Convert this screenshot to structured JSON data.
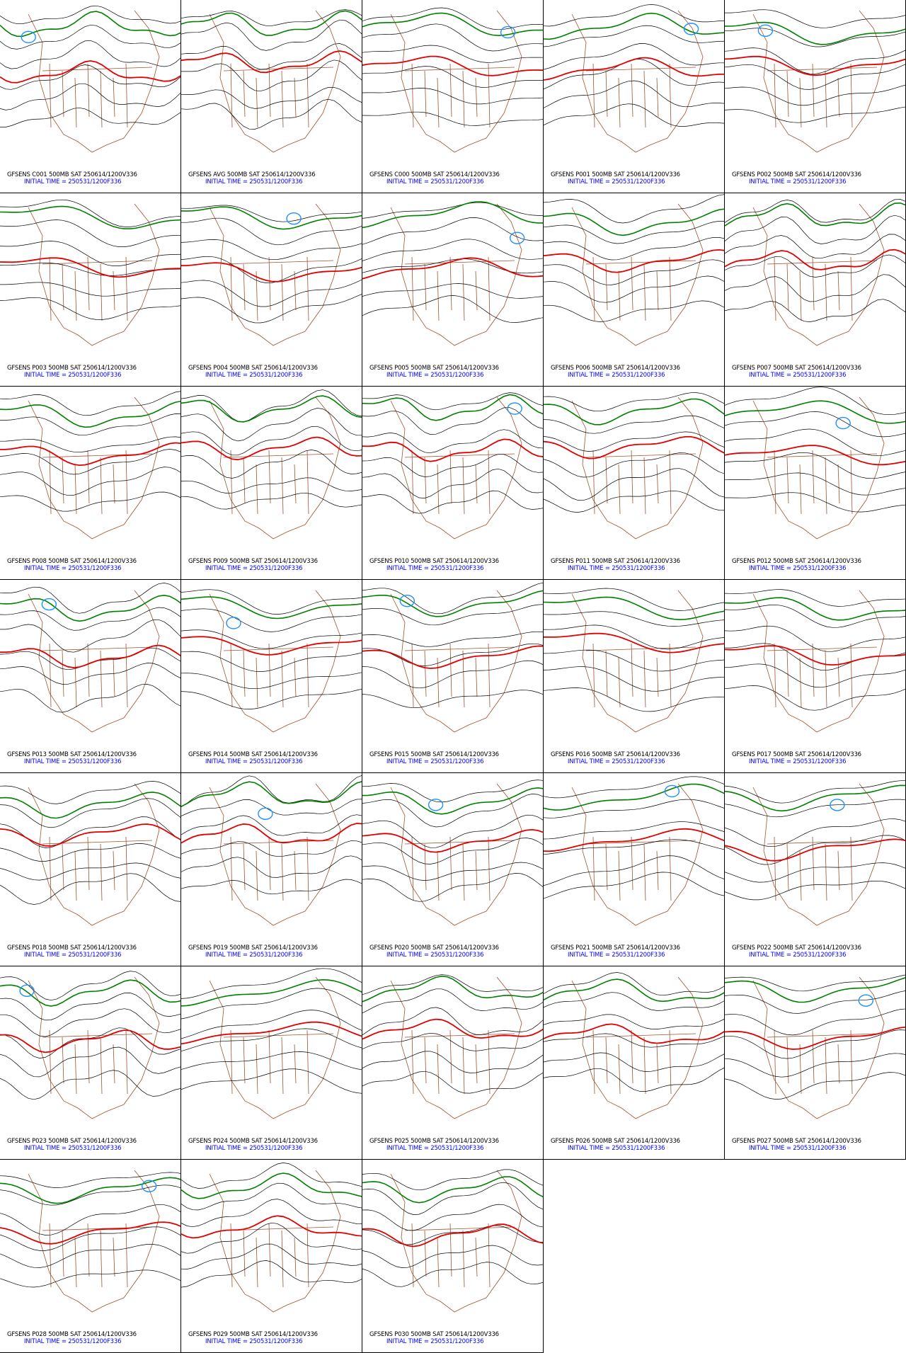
{
  "panels": [
    {
      "line1": "GFSENS C001 500MB SAT 250614/1200V336",
      "line2": "INITIAL TIME = 250531/1200F336"
    },
    {
      "line1": "GFSENS AVG 500MB SAT 250614/1200V336",
      "line2": "INITIAL TIME = 250531/1200F336"
    },
    {
      "line1": "GFSENS C000 500MB SAT 250614/1200V336",
      "line2": "INITIAL TIME = 250531/1200F336"
    },
    {
      "line1": "GFSENS P001 500MB SAT 250614/1200V336",
      "line2": "INITIAL TIME = 250531/1200F336"
    },
    {
      "line1": "GFSENS P002 500MB SAT 250614/1200V336",
      "line2": "INITIAL TIME = 250531/1200F336"
    },
    {
      "line1": "GFSENS P003 500MB SAT 250614/1200V336",
      "line2": "INITIAL TIME = 250531/1200F336"
    },
    {
      "line1": "GFSENS P004 500MB SAT 250614/1200V336",
      "line2": "INITIAL TIME = 250531/1200F336"
    },
    {
      "line1": "GFSENS P005 500MB SAT 250614/1200V336",
      "line2": "INITIAL TIME = 250531/1200F336"
    },
    {
      "line1": "GFSENS P006 500MB SAT 250614/1200V336",
      "line2": "INITIAL TIME = 250531/1200F336"
    },
    {
      "line1": "GFSENS P007 500MB SAT 250614/1200V336",
      "line2": "INITIAL TIME = 250531/1200F336"
    },
    {
      "line1": "GFSENS P008 500MB SAT 250614/1200V336",
      "line2": "INITIAL TIME = 250531/1200F336"
    },
    {
      "line1": "GFSENS P009 500MB SAT 250614/1200V336",
      "line2": "INITIAL TIME = 250531/1200F336"
    },
    {
      "line1": "GFSENS P010 500MB SAT 250614/1200V336",
      "line2": "INITIAL TIME = 250531/1200F336"
    },
    {
      "line1": "GFSENS P011 500MB SAT 250614/1200V336",
      "line2": "INITIAL TIME = 250531/1200F336"
    },
    {
      "line1": "GFSENS P012 500MB SAT 250614/1200V336",
      "line2": "INITIAL TIME = 250531/1200F336"
    },
    {
      "line1": "GFSENS P013 500MB SAT 250614/1200V336",
      "line2": "INITIAL TIME = 250531/1200F336"
    },
    {
      "line1": "GFSENS P014 500MB SAT 250614/1200V336",
      "line2": "INITIAL TIME = 250531/1200F336"
    },
    {
      "line1": "GFSENS P015 500MB SAT 250614/1200V336",
      "line2": "INITIAL TIME = 250531/1200F336"
    },
    {
      "line1": "GFSENS P016 500MB SAT 250614/1200V336",
      "line2": "INITIAL TIME = 250531/1200F336"
    },
    {
      "line1": "GFSENS P017 500MB SAT 250614/1200V336",
      "line2": "INITIAL TIME = 250531/1200F336"
    },
    {
      "line1": "GFSENS P018 500MB SAT 250614/1200V336",
      "line2": "INITIAL TIME = 250531/1200F336"
    },
    {
      "line1": "GFSENS P019 500MB SAT 250614/1200V336",
      "line2": "INITIAL TIME = 250531/1200F336"
    },
    {
      "line1": "GFSENS P020 500MB SAT 250614/1200V336",
      "line2": "INITIAL TIME = 250531/1200F336"
    },
    {
      "line1": "GFSENS P021 500MB SAT 250614/1200V336",
      "line2": "INITIAL TIME = 250531/1200F336"
    },
    {
      "line1": "GFSENS P022 500MB SAT 250614/1200V336",
      "line2": "INITIAL TIME = 250531/1200F336"
    },
    {
      "line1": "GFSENS P023 500MB SAT 250614/1200V336",
      "line2": "INITIAL TIME = 250531/1200F336"
    },
    {
      "line1": "GFSENS P024 500MB SAT 250614/1200V336",
      "line2": "INITIAL TIME = 250531/1200F336"
    },
    {
      "line1": "GFSENS P025 500MB SAT 250614/1200V336",
      "line2": "INITIAL TIME = 250531/1200F336"
    },
    {
      "line1": "GFSENS P026 500MB SAT 250614/1200V336",
      "line2": "INITIAL TIME = 250531/1200F336"
    },
    {
      "line1": "GFSENS P027 500MB SAT 250614/1200V336",
      "line2": "INITIAL TIME = 250531/1200F336"
    },
    {
      "line1": "GFSENS P028 500MB SAT 250614/1200V336",
      "line2": "INITIAL TIME = 250531/1200F336"
    },
    {
      "line1": "GFSENS P029 500MB SAT 250614/1200V336",
      "line2": "INITIAL TIME = 250531/1200F336"
    },
    {
      "line1": "GFSENS P030 500MB SAT 250614/1200V336",
      "line2": "INITIAL TIME = 250531/1200F336"
    }
  ]
}
